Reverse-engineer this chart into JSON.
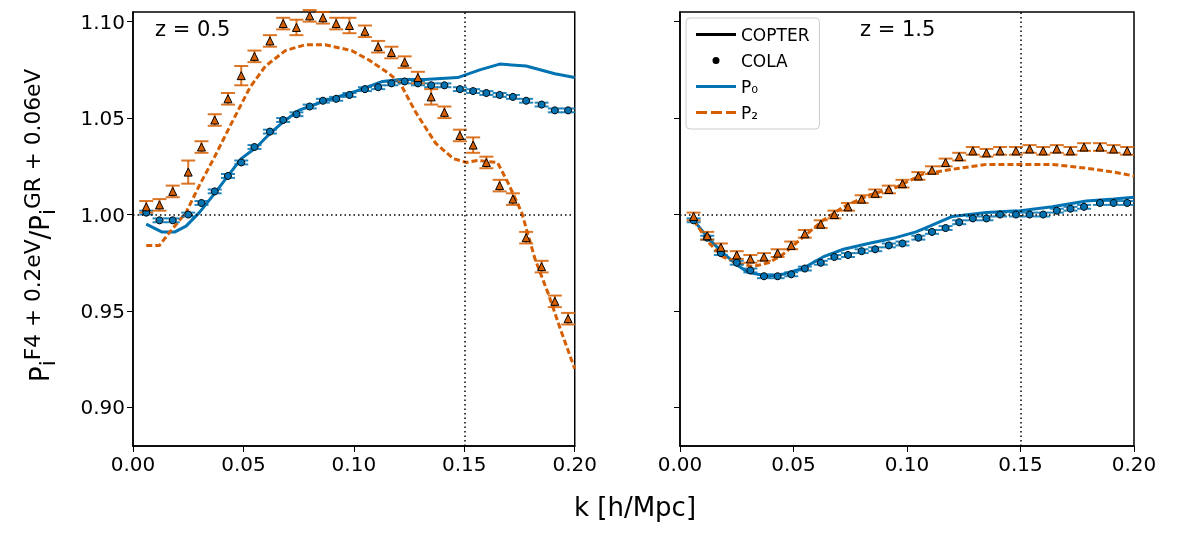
{
  "chart_data": [
    {
      "type": "line",
      "xlabel": "k [h/Mpc]",
      "ylabel": "P$_{i}$$^{F4 + 0.2eV}$/P$_{i}$$^{GR + 0.06eV}$",
      "annotations": [
        "z = 0.5"
      ],
      "legend": false,
      "grid": false,
      "xlim": [
        0,
        0.2
      ],
      "xticks": [
        {
          "value": 0,
          "label": "0.00"
        },
        {
          "value": 0.05,
          "label": "0.05"
        },
        {
          "value": 0.1,
          "label": "0.10"
        },
        {
          "value": 0.15,
          "label": "0.15"
        },
        {
          "value": 0.2,
          "label": "0.20"
        }
      ],
      "ylim": [
        0.88,
        1.105
      ],
      "yticks": [
        {
          "value": 0.9,
          "label": "0.90"
        },
        {
          "value": 0.95,
          "label": "0.95"
        },
        {
          "value": 1.0,
          "label": "1.00"
        },
        {
          "value": 1.05,
          "label": "1.05"
        },
        {
          "value": 1.1,
          "label": "1.10"
        }
      ],
      "ref_lines": [
        {
          "axis": "x",
          "value": 0.15,
          "color": "#000000",
          "line_style": "dotted"
        },
        {
          "axis": "y",
          "value": 1.0,
          "color": "#000000",
          "line_style": "dotted"
        }
      ],
      "x": [
        0.006,
        0.012,
        0.018,
        0.025,
        0.031,
        0.037,
        0.043,
        0.049,
        0.055,
        0.062,
        0.068,
        0.074,
        0.08,
        0.086,
        0.092,
        0.098,
        0.105,
        0.111,
        0.117,
        0.123,
        0.129,
        0.135,
        0.141,
        0.148,
        0.154,
        0.16,
        0.166,
        0.172,
        0.178,
        0.185,
        0.191,
        0.197
      ],
      "series": [
        {
          "color": "#0173b2",
          "line_style": "solid",
          "marker": "none",
          "x": [
            0.006,
            0.013,
            0.019,
            0.024,
            0.03,
            0.037,
            0.043,
            0.049,
            0.056,
            0.062,
            0.068,
            0.075,
            0.087,
            0.101,
            0.113,
            0.121,
            0.132,
            0.147,
            0.157,
            0.166,
            0.178,
            0.191,
            0.2
          ],
          "values": [
            0.995,
            0.991,
            0.991,
            0.994,
            1.001,
            1.011,
            1.02,
            1.029,
            1.035,
            1.042,
            1.048,
            1.054,
            1.059,
            1.064,
            1.069,
            1.07,
            1.07,
            1.071,
            1.075,
            1.078,
            1.077,
            1.073,
            1.071
          ]
        },
        {
          "color": "#d55e00",
          "line_style": "dashed",
          "marker": "none",
          "x": [
            0.006,
            0.012,
            0.016,
            0.024,
            0.03,
            0.037,
            0.044,
            0.053,
            0.06,
            0.069,
            0.078,
            0.087,
            0.099,
            0.107,
            0.116,
            0.121,
            0.128,
            0.137,
            0.145,
            0.151,
            0.156,
            0.165,
            0.17,
            0.176,
            0.182,
            0.188,
            0.194,
            0.2
          ],
          "values": [
            0.984,
            0.984,
            0.99,
            1.001,
            1.015,
            1.03,
            1.046,
            1.066,
            1.077,
            1.085,
            1.088,
            1.088,
            1.085,
            1.08,
            1.073,
            1.068,
            1.053,
            1.037,
            1.029,
            1.027,
            1.028,
            1.027,
            1.016,
            1.001,
            0.977,
            0.959,
            0.939,
            0.92
          ]
        },
        {
          "type": "scatter",
          "color": "#0173b2",
          "marker": "circle",
          "values": [
            1.001,
            0.997,
            0.997,
            1.0,
            1.006,
            1.012,
            1.02,
            1.027,
            1.035,
            1.043,
            1.049,
            1.052,
            1.056,
            1.059,
            1.06,
            1.062,
            1.065,
            1.066,
            1.068,
            1.069,
            1.068,
            1.067,
            1.067,
            1.065,
            1.064,
            1.063,
            1.062,
            1.061,
            1.059,
            1.057,
            1.054,
            1.054
          ],
          "errors": [
            0.001,
            0.001,
            0.001,
            0.001,
            0.001,
            0.001,
            0.001,
            0.001,
            0.001,
            0.001,
            0.001,
            0.001,
            0.001,
            0.001,
            0.001,
            0.001,
            0.001,
            0.001,
            0.001,
            0.001,
            0.001,
            0.001,
            0.001,
            0.001,
            0.001,
            0.001,
            0.001,
            0.001,
            0.001,
            0.001,
            0.001,
            0.001
          ]
        },
        {
          "type": "scatter",
          "color": "#d55e00",
          "marker": "triangle",
          "values": [
            1.004,
            1.005,
            1.012,
            1.022,
            1.035,
            1.049,
            1.06,
            1.072,
            1.082,
            1.09,
            1.099,
            1.097,
            1.103,
            1.102,
            1.099,
            1.098,
            1.095,
            1.087,
            1.084,
            1.079,
            1.071,
            1.061,
            1.053,
            1.041,
            1.036,
            1.027,
            1.015,
            1.008,
            0.988,
            0.973,
            0.955,
            0.946
          ],
          "errors": [
            0.003,
            0.003,
            0.003,
            0.006,
            0.003,
            0.003,
            0.003,
            0.005,
            0.003,
            0.003,
            0.003,
            0.004,
            0.003,
            0.003,
            0.003,
            0.004,
            0.003,
            0.003,
            0.003,
            0.003,
            0.003,
            0.004,
            0.003,
            0.003,
            0.004,
            0.003,
            0.003,
            0.003,
            0.003,
            0.003,
            0.003,
            0.003
          ]
        }
      ]
    },
    {
      "type": "line",
      "annotations": [
        "z = 1.5"
      ],
      "legend": "top left",
      "grid": false,
      "tick_labels": "x",
      "xlim": [
        0,
        0.2
      ],
      "xticks": [
        {
          "value": 0,
          "label": "0.00"
        },
        {
          "value": 0.05,
          "label": "0.05"
        },
        {
          "value": 0.1,
          "label": "0.10"
        },
        {
          "value": 0.15,
          "label": "0.15"
        },
        {
          "value": 0.2,
          "label": "0.20"
        }
      ],
      "ylim": [
        0.88,
        1.105
      ],
      "yticks": [
        0.9,
        0.95,
        1.0,
        1.05,
        1.1
      ],
      "ref_lines": [
        {
          "axis": "x",
          "value": 0.15,
          "color": "#000000",
          "line_style": "dotted"
        },
        {
          "axis": "y",
          "value": 1.0,
          "color": "#000000",
          "line_style": "dotted"
        }
      ],
      "x": [
        0.006,
        0.012,
        0.018,
        0.025,
        0.031,
        0.037,
        0.043,
        0.049,
        0.055,
        0.062,
        0.068,
        0.074,
        0.08,
        0.086,
        0.092,
        0.098,
        0.105,
        0.111,
        0.117,
        0.123,
        0.129,
        0.135,
        0.141,
        0.148,
        0.154,
        0.16,
        0.166,
        0.172,
        0.178,
        0.185,
        0.191,
        0.197
      ],
      "series": [
        {
          "name": "COPTER",
          "color": "#000000",
          "line_style": "solid",
          "marker": "none",
          "values": [
            null,
            null,
            null,
            null,
            null,
            null,
            null,
            null,
            null,
            null,
            null,
            null,
            null,
            null,
            null,
            null,
            null,
            null,
            null,
            null,
            null,
            null,
            null,
            null,
            null,
            null,
            null,
            null,
            null,
            null,
            null,
            null
          ]
        },
        {
          "name": "COLA",
          "type": "scatter",
          "color": "#000000",
          "marker": "circle",
          "values": [
            null,
            null,
            null,
            null,
            null,
            null,
            null,
            null,
            null,
            null,
            null,
            null,
            null,
            null,
            null,
            null,
            null,
            null,
            null,
            null,
            null,
            null,
            null,
            null,
            null,
            null,
            null,
            null,
            null,
            null,
            null,
            null
          ]
        },
        {
          "name": "P₀",
          "color": "#0173b2",
          "line_style": "solid",
          "marker": "none",
          "x": [
            0.006,
            0.013,
            0.019,
            0.025,
            0.03,
            0.039,
            0.045,
            0.054,
            0.063,
            0.072,
            0.083,
            0.095,
            0.104,
            0.108,
            0.12,
            0.135,
            0.15,
            0.164,
            0.179,
            0.191,
            0.2
          ],
          "values": [
            0.997,
            0.987,
            0.98,
            0.974,
            0.97,
            0.968,
            0.969,
            0.972,
            0.978,
            0.982,
            0.985,
            0.988,
            0.991,
            0.993,
            0.999,
            1.001,
            1.002,
            1.004,
            1.007,
            1.008,
            1.009
          ]
        },
        {
          "name": "P₂",
          "color": "#d55e00",
          "line_style": "dashed",
          "marker": "none",
          "x": [
            0.006,
            0.013,
            0.019,
            0.025,
            0.032,
            0.039,
            0.045,
            0.054,
            0.063,
            0.072,
            0.083,
            0.095,
            0.107,
            0.123,
            0.135,
            0.15,
            0.164,
            0.179,
            0.191,
            0.2
          ],
          "values": [
            0.997,
            0.985,
            0.978,
            0.975,
            0.973,
            0.975,
            0.979,
            0.988,
            0.997,
            1.004,
            1.01,
            1.014,
            1.021,
            1.024,
            1.026,
            1.026,
            1.026,
            1.024,
            1.022,
            1.02
          ]
        },
        {
          "type": "scatter",
          "color": "#0173b2",
          "marker": "circle",
          "values": [
            0.997,
            0.988,
            0.98,
            0.975,
            0.971,
            0.968,
            0.968,
            0.969,
            0.972,
            0.975,
            0.978,
            0.979,
            0.981,
            0.982,
            0.984,
            0.985,
            0.988,
            0.991,
            0.993,
            0.996,
            0.998,
            0.998,
            1.0,
            1.0,
            1.0,
            1.0,
            1.002,
            1.003,
            1.004,
            1.006,
            1.006,
            1.006
          ],
          "errors": [
            0.001,
            0.001,
            0.001,
            0.001,
            0.001,
            0.001,
            0.001,
            0.001,
            0.001,
            0.001,
            0.001,
            0.001,
            0.001,
            0.001,
            0.001,
            0.001,
            0.001,
            0.001,
            0.001,
            0.001,
            0.001,
            0.001,
            0.001,
            0.001,
            0.001,
            0.001,
            0.001,
            0.001,
            0.001,
            0.001,
            0.001,
            0.001
          ]
        },
        {
          "type": "scatter",
          "color": "#d55e00",
          "marker": "triangle",
          "values": [
            0.999,
            0.989,
            0.983,
            0.979,
            0.977,
            0.978,
            0.98,
            0.984,
            0.99,
            0.995,
            1.0,
            1.004,
            1.008,
            1.011,
            1.013,
            1.016,
            1.02,
            1.023,
            1.027,
            1.03,
            1.033,
            1.032,
            1.033,
            1.033,
            1.034,
            1.033,
            1.034,
            1.033,
            1.035,
            1.035,
            1.034,
            1.033
          ],
          "errors": [
            0.002,
            0.002,
            0.002,
            0.002,
            0.002,
            0.002,
            0.002,
            0.002,
            0.002,
            0.002,
            0.002,
            0.002,
            0.002,
            0.002,
            0.002,
            0.002,
            0.002,
            0.002,
            0.002,
            0.002,
            0.002,
            0.002,
            0.002,
            0.002,
            0.002,
            0.002,
            0.002,
            0.002,
            0.002,
            0.002,
            0.002,
            0.002
          ]
        }
      ]
    }
  ]
}
